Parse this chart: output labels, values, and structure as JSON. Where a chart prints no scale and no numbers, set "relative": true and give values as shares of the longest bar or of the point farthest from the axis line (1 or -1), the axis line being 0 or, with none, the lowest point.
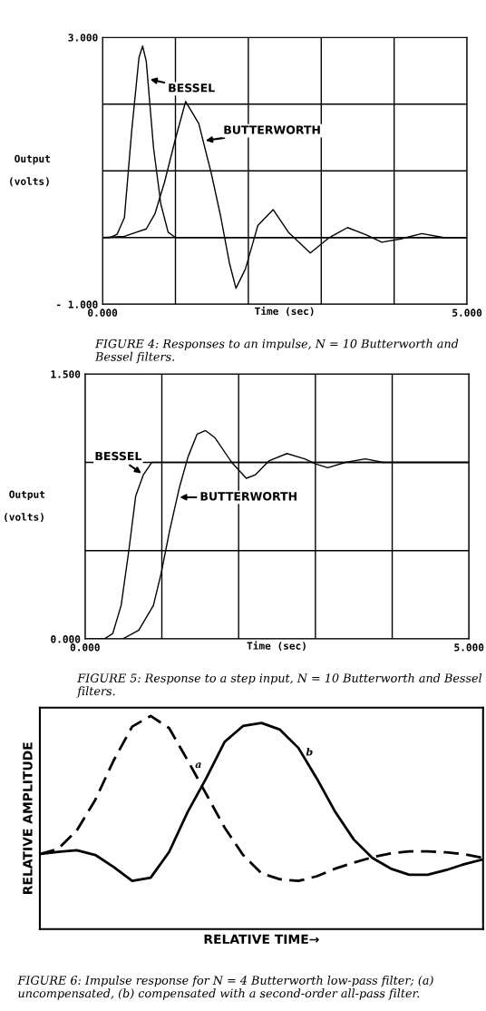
{
  "chart_data": [
    {
      "type": "line",
      "xlabel": "Time (sec)",
      "ylabel": "Output\n\n(volts)",
      "grid": true,
      "xlim": [
        0,
        5
      ],
      "ylim": [
        -1,
        3
      ],
      "xticks": [
        {
          "value": 0,
          "label": "0.000"
        },
        {
          "value": 1,
          "label": null
        },
        {
          "value": 2,
          "label": null
        },
        {
          "value": 3,
          "label": null
        },
        {
          "value": 4,
          "label": null
        },
        {
          "value": 5,
          "label": "5.000"
        }
      ],
      "yticks": [
        {
          "value": -1,
          "label": "- 1.000"
        },
        {
          "value": 0,
          "label": null
        },
        {
          "value": 1,
          "label": null
        },
        {
          "value": 2,
          "label": null
        },
        {
          "value": 3,
          "label": "3.000"
        }
      ],
      "series": [
        {
          "name": "BESSEL",
          "color": "#000000",
          "x": [
            0,
            0.1,
            0.2,
            0.3,
            0.4,
            0.5,
            0.55,
            0.6,
            0.7,
            0.8,
            0.9,
            1.0,
            2.0,
            3.0,
            4.0,
            5.0
          ],
          "values": [
            0,
            0,
            0.05,
            0.3,
            1.6,
            2.7,
            2.87,
            2.64,
            1.34,
            0.5,
            0.08,
            0,
            0,
            0,
            0,
            0
          ]
        },
        {
          "name": "BUTTERWORTH",
          "color": "#000000",
          "x": [
            0,
            0.3,
            0.6,
            0.72,
            0.85,
            1.0,
            1.14,
            1.32,
            1.49,
            1.62,
            1.74,
            1.83,
            1.96,
            2.13,
            2.34,
            2.55,
            2.85,
            3.11,
            3.36,
            3.62,
            3.83,
            4.09,
            4.38,
            4.68,
            5.0
          ],
          "values": [
            0,
            0.02,
            0.13,
            0.36,
            0.83,
            1.48,
            2.04,
            1.71,
            0.97,
            0.32,
            -0.38,
            -0.76,
            -0.47,
            0.18,
            0.42,
            0.08,
            -0.23,
            0,
            0.15,
            0.04,
            -0.07,
            -0.02,
            0.06,
            0,
            0
          ]
        }
      ],
      "annotations": [
        "FIGURE 4: Responses to an impulse, N = 10 Butterworth and Bessel filters."
      ]
    },
    {
      "type": "line",
      "xlabel": "Time (sec)",
      "ylabel": "Output\n\n(volts)",
      "grid": true,
      "xlim": [
        0,
        5
      ],
      "ylim": [
        0,
        1.5
      ],
      "xticks": [
        {
          "value": 0,
          "label": "0.000"
        },
        {
          "value": 1,
          "label": null
        },
        {
          "value": 2,
          "label": null
        },
        {
          "value": 3,
          "label": null
        },
        {
          "value": 4,
          "label": null
        },
        {
          "value": 5,
          "label": "5.000"
        }
      ],
      "yticks": [
        {
          "value": 0,
          "label": "0.000"
        },
        {
          "value": 0.5,
          "label": null
        },
        {
          "value": 1,
          "label": null
        },
        {
          "value": 1.5,
          "label": "1.500"
        }
      ],
      "series": [
        {
          "name": "BESSEL",
          "color": "#000000",
          "x": [
            0,
            0.25,
            0.36,
            0.47,
            0.57,
            0.66,
            0.76,
            0.87,
            5.0
          ],
          "values": [
            0,
            0,
            0.03,
            0.19,
            0.5,
            0.81,
            0.93,
            1.0,
            1.0
          ]
        },
        {
          "name": "BUTTERWORTH",
          "color": "#000000",
          "x": [
            0.49,
            0.7,
            0.89,
            0.99,
            1.1,
            1.23,
            1.34,
            1.46,
            1.57,
            1.69,
            1.91,
            2.1,
            2.22,
            2.4,
            2.63,
            2.86,
            3.01,
            3.16,
            3.39,
            3.65,
            3.88,
            4.14,
            5.0
          ],
          "values": [
            0,
            0.05,
            0.19,
            0.37,
            0.61,
            0.86,
            1.03,
            1.16,
            1.18,
            1.14,
            1.0,
            0.91,
            0.93,
            1.01,
            1.05,
            1.02,
            0.99,
            0.97,
            1.0,
            1.02,
            1.0,
            1.0,
            1.0
          ]
        }
      ],
      "annotations": [
        "FIGURE 5: Response to a step input, N = 10 Butterworth and Bessel filters."
      ]
    },
    {
      "type": "line",
      "relative": true,
      "xlabel": "RELATIVE TIME→",
      "ylabel": "RELATIVE AMPLITUDE",
      "categories": [
        null,
        null,
        null,
        null,
        null,
        null,
        null,
        null,
        null,
        null,
        null,
        null,
        null,
        null,
        null,
        null,
        null,
        null,
        null,
        null,
        null,
        null,
        null,
        null,
        null
      ],
      "series": [
        {
          "name": "a",
          "color": "#000000",
          "line_style": "dashed",
          "values": [
            0.352,
            0.377,
            0.463,
            0.606,
            0.792,
            0.95,
            1.0,
            0.943,
            0.792,
            0.635,
            0.477,
            0.348,
            0.262,
            0.234,
            0.226,
            0.248,
            0.284,
            0.312,
            0.337,
            0.355,
            0.365,
            0.365,
            0.36,
            0.351,
            0.334
          ]
        },
        {
          "name": "b",
          "color": "#000000",
          "line_style": "solid",
          "values": [
            0.352,
            0.362,
            0.37,
            0.348,
            0.291,
            0.226,
            0.241,
            0.362,
            0.549,
            0.706,
            0.878,
            0.953,
            0.967,
            0.936,
            0.85,
            0.706,
            0.549,
            0.42,
            0.334,
            0.284,
            0.255,
            0.255,
            0.277,
            0.305,
            0.327
          ]
        }
      ],
      "annotations": [
        "FIGURE 6: Impulse response for N = 4 Butterworth low-pass filter; (a) uncompensated, (b) compensated with a second-order all-pass filter."
      ]
    }
  ]
}
